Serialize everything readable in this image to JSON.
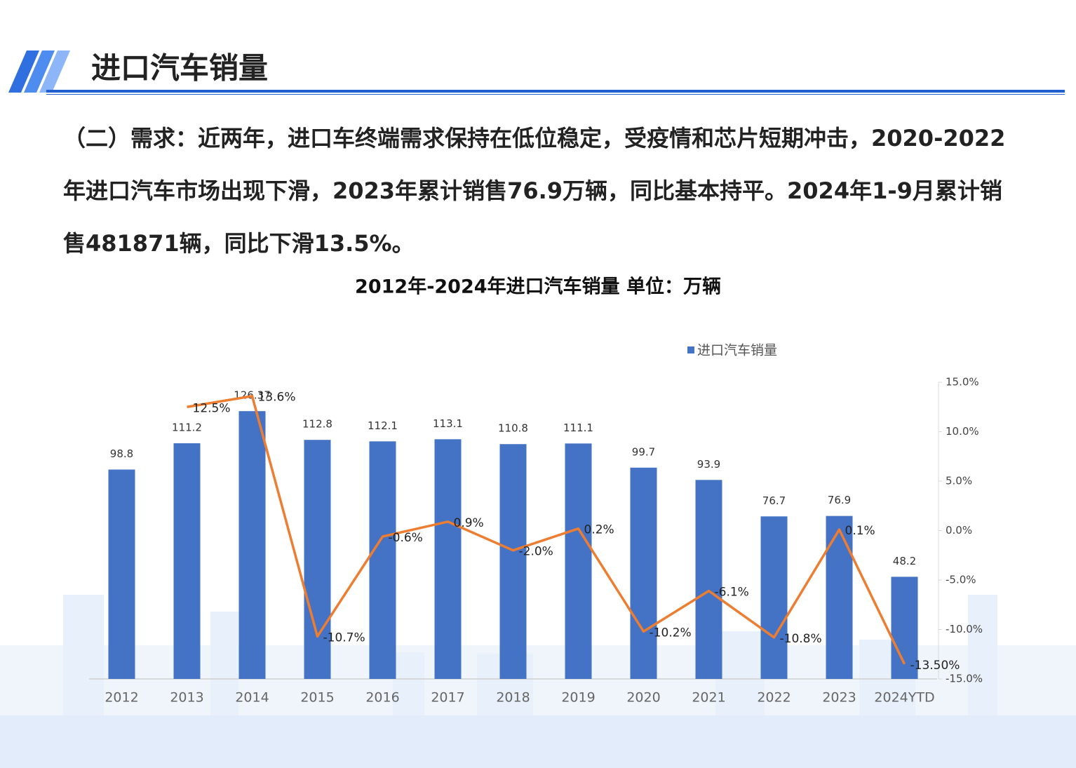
{
  "header": {
    "title": "进口汽车销量"
  },
  "paragraph": "（二）需求：近两年，进口车终端需求保持在低位稳定，受疫情和芯片短期冲击，2020-2022年进口汽车市场出现下滑，2023年累计销售76.9万辆，同比基本持平。2024年1-9月累计销售481871辆，同比下滑13.5%。",
  "chart_data": {
    "type": "bar",
    "title": "2012年-2024年进口汽车销量  单位：万辆",
    "categories": [
      "2012",
      "2013",
      "2014",
      "2015",
      "2016",
      "2017",
      "2018",
      "2019",
      "2020",
      "2021",
      "2022",
      "2023",
      "2024YTD"
    ],
    "series": [
      {
        "name": "进口汽车销量",
        "color": "#4472c4",
        "values": [
          98.8,
          111.2,
          126.37,
          112.8,
          112.1,
          113.1,
          110.8,
          111.1,
          99.7,
          93.9,
          76.7,
          76.9,
          48.2
        ]
      },
      {
        "type": "line",
        "color": "#ed7d31",
        "axis": "y2",
        "values": [
          null,
          12.5,
          13.6,
          -10.7,
          -0.6,
          0.9,
          -2.0,
          0.2,
          -10.2,
          -6.1,
          -10.8,
          0.1,
          -13.5
        ],
        "value_labels": [
          null,
          "12.5%",
          "13.6%",
          "-10.7%",
          "-0.6%",
          "0.9%",
          "-2.0%",
          "0.2%",
          "-10.2%",
          "-6.1%",
          "-10.8%",
          "0.1%",
          "-13.50%"
        ]
      }
    ],
    "ylim": [
      0,
      140
    ],
    "y2lim": [
      -15,
      15
    ],
    "y2ticks": [
      {
        "value": 15,
        "label": "15.0%"
      },
      {
        "value": 10,
        "label": "10.0%"
      },
      {
        "value": 5,
        "label": "5.0%"
      },
      {
        "value": 0,
        "label": "0.0%"
      },
      {
        "value": -5,
        "label": "-5.0%"
      },
      {
        "value": -10,
        "label": "-10.0%"
      },
      {
        "value": -15,
        "label": "-15.0%"
      }
    ],
    "legend": "top"
  }
}
